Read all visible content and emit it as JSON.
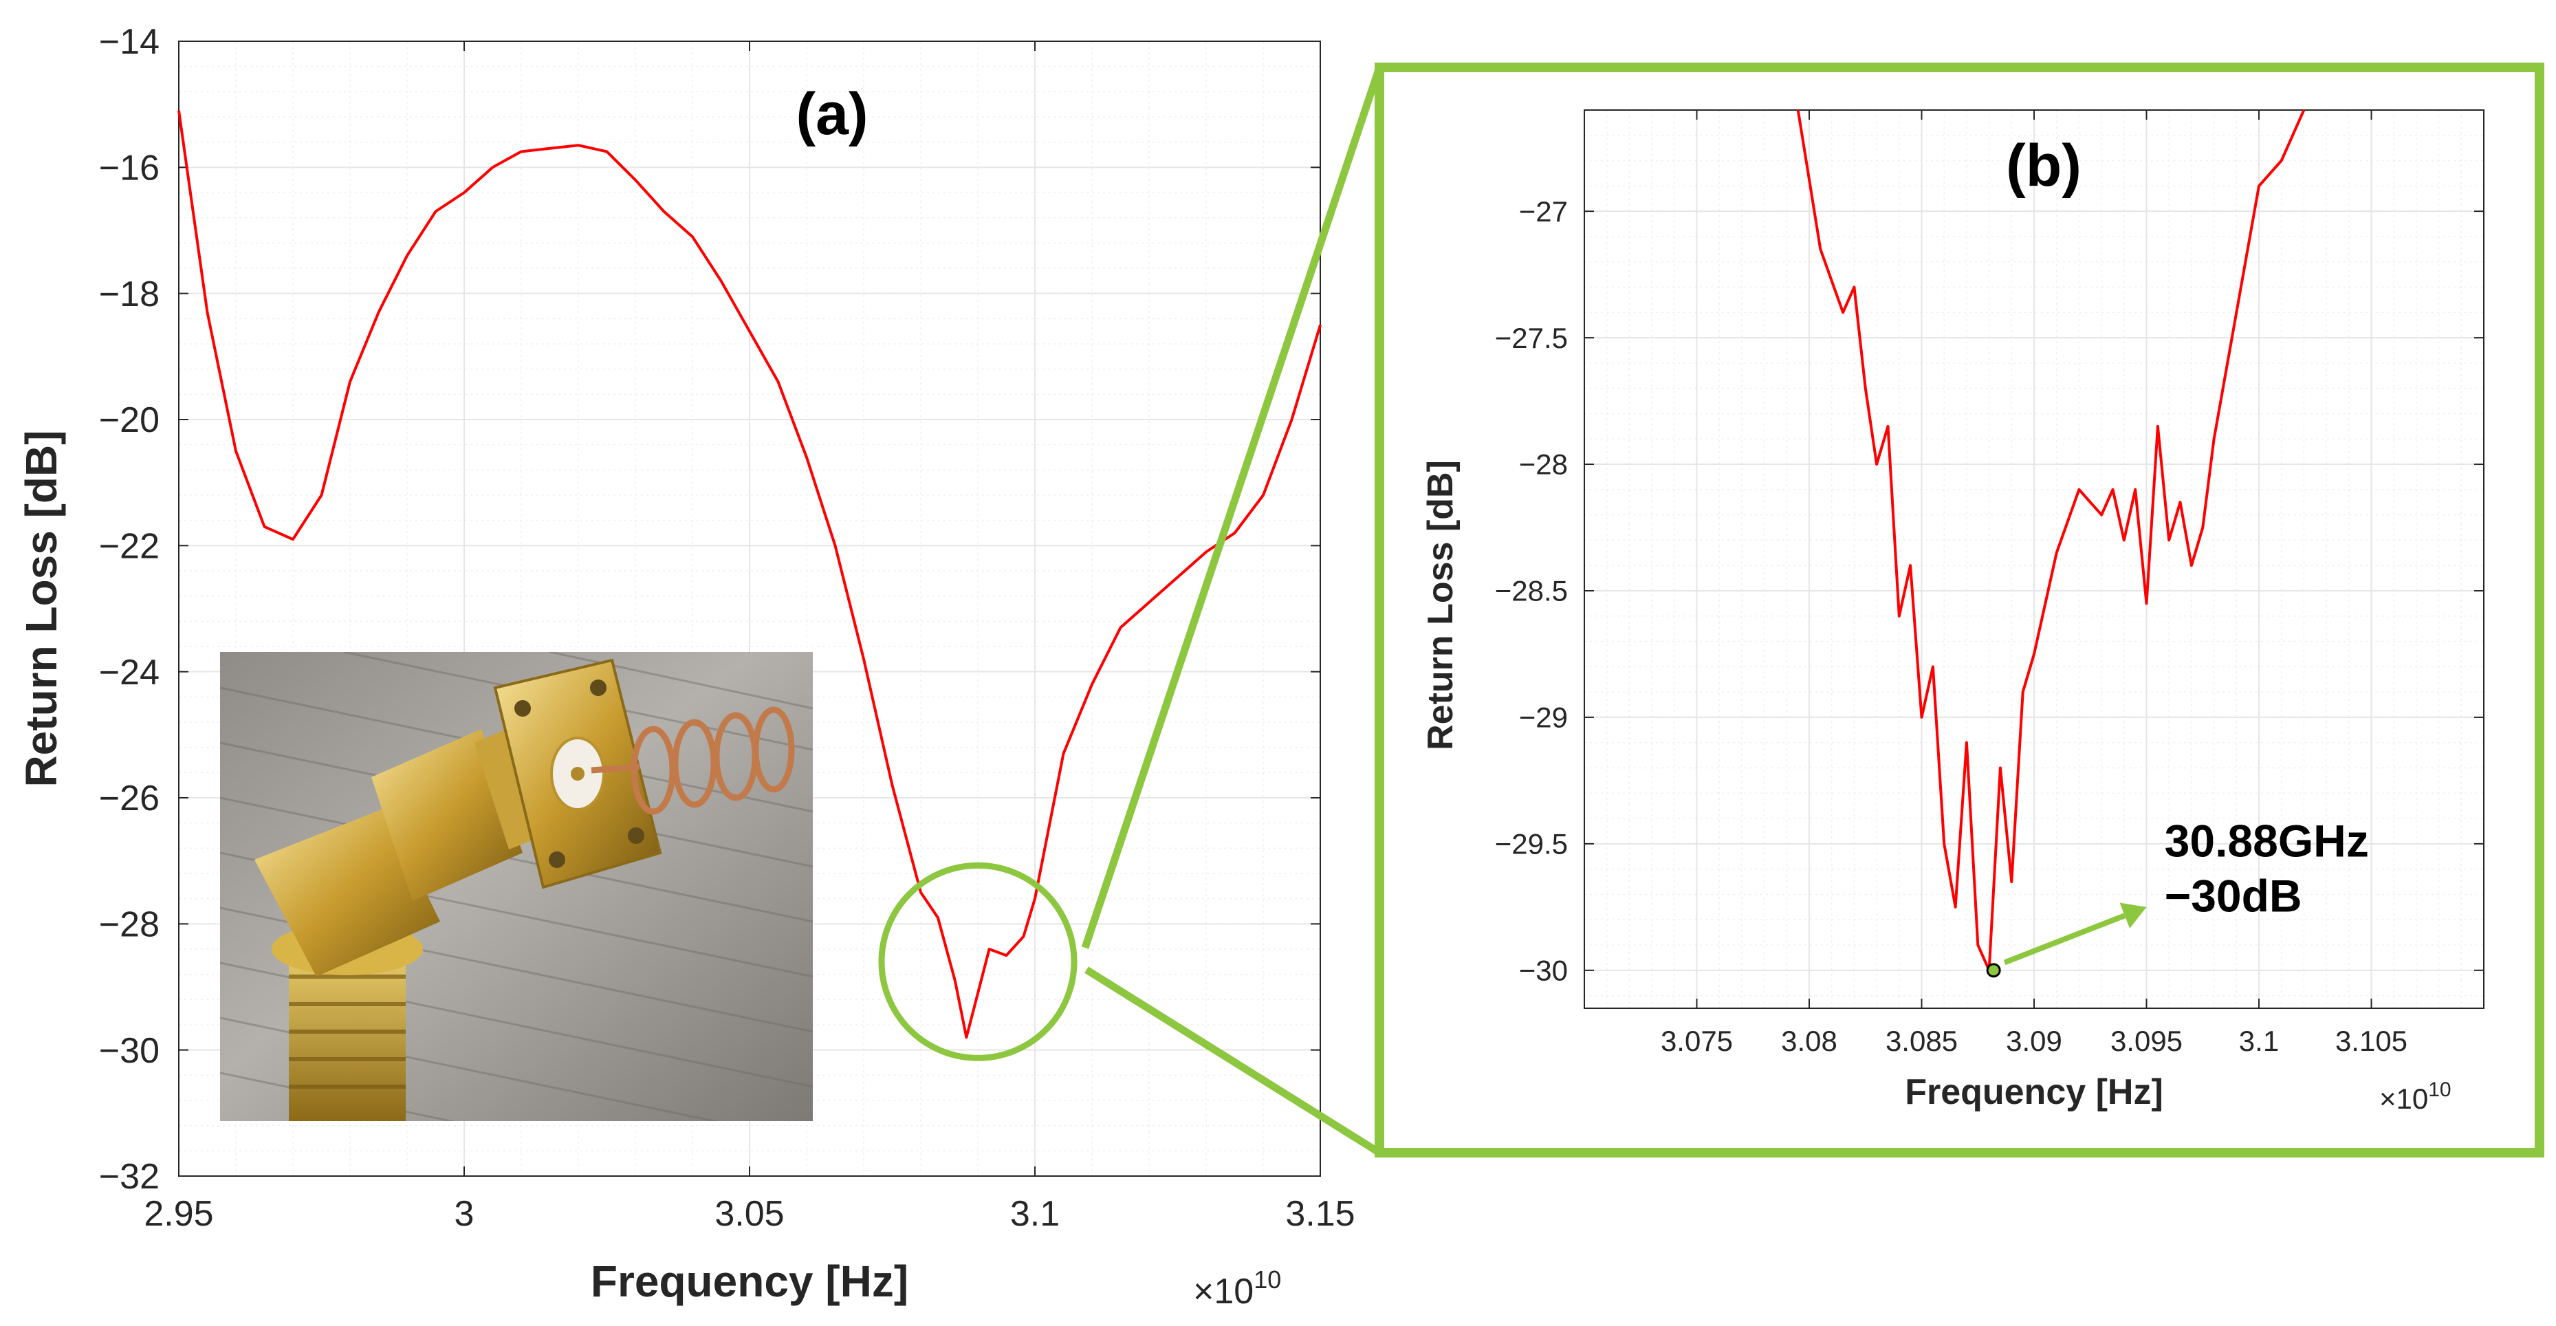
{
  "colors": {
    "series": "#ff0000",
    "highlight": "#8dc63f",
    "grid": "#e6e6e6",
    "axis": "#262626",
    "marker_fill": "#8dc63f"
  },
  "inset_photo": {
    "icon": "sma-connector-with-helical-antenna-photo"
  },
  "chart_data": [
    {
      "type": "line",
      "panel_label": "(a)",
      "title": "",
      "xlabel": "Frequency [Hz]",
      "ylabel": "Return Loss [dB]",
      "x_multiplier": "×10",
      "x_multiplier_exp": "10",
      "xlim": [
        2.95,
        3.15
      ],
      "ylim": [
        -32,
        -14
      ],
      "xticks": [
        2.95,
        3.0,
        3.05,
        3.1,
        3.15
      ],
      "xtick_labels": [
        "2.95",
        "3",
        "3.05",
        "3.1",
        "3.15"
      ],
      "yticks": [
        -32,
        -30,
        -28,
        -26,
        -24,
        -22,
        -20,
        -18,
        -16,
        -14
      ],
      "ytick_labels": [
        "−32",
        "−30",
        "−28",
        "−26",
        "−24",
        "−22",
        "−20",
        "−18",
        "−16",
        "−14"
      ],
      "grid": true,
      "series": [
        {
          "x": [
            2.95,
            2.955,
            2.96,
            2.965,
            2.97,
            2.975,
            2.98,
            2.985,
            2.99,
            2.995,
            3.0,
            3.005,
            3.01,
            3.015,
            3.02,
            3.025,
            3.03,
            3.035,
            3.04,
            3.045,
            3.05,
            3.055,
            3.06,
            3.065,
            3.07,
            3.075,
            3.08,
            3.083,
            3.086,
            3.088,
            3.09,
            3.092,
            3.095,
            3.098,
            3.1,
            3.105,
            3.11,
            3.115,
            3.12,
            3.125,
            3.13,
            3.135,
            3.14,
            3.145,
            3.15
          ],
          "y": [
            -15.1,
            -18.3,
            -20.5,
            -21.7,
            -21.9,
            -21.2,
            -19.4,
            -18.3,
            -17.4,
            -16.7,
            -16.4,
            -16.0,
            -15.75,
            -15.7,
            -15.65,
            -15.75,
            -16.2,
            -16.7,
            -17.1,
            -17.8,
            -18.6,
            -19.4,
            -20.6,
            -22.0,
            -23.8,
            -25.8,
            -27.5,
            -27.9,
            -28.9,
            -29.8,
            -29.1,
            -28.4,
            -28.5,
            -28.2,
            -27.6,
            -25.3,
            -24.2,
            -23.3,
            -22.9,
            -22.5,
            -22.1,
            -21.8,
            -21.2,
            -20.0,
            -18.5
          ]
        }
      ],
      "highlight": {
        "center": [
          3.09,
          -28.6
        ]
      }
    },
    {
      "type": "line",
      "panel_label": "(b)",
      "title": "",
      "xlabel": "Frequency [Hz]",
      "ylabel": "Return Loss [dB]",
      "x_multiplier": "×10",
      "x_multiplier_exp": "10",
      "xlim": [
        3.07,
        3.11
      ],
      "ylim": [
        -30.15,
        -26.6
      ],
      "xticks": [
        3.075,
        3.08,
        3.085,
        3.09,
        3.095,
        3.1,
        3.105
      ],
      "xtick_labels": [
        "3.075",
        "3.08",
        "3.085",
        "3.09",
        "3.095",
        "3.1",
        "3.105"
      ],
      "yticks": [
        -30,
        -29.5,
        -29,
        -28.5,
        -28,
        -27.5,
        -27
      ],
      "ytick_labels": [
        "−30",
        "−29.5",
        "−29",
        "−28.5",
        "−28",
        "−27.5",
        "−27"
      ],
      "grid": true,
      "series": [
        {
          "x": [
            3.0795,
            3.0805,
            3.0815,
            3.082,
            3.0825,
            3.083,
            3.0835,
            3.084,
            3.0845,
            3.085,
            3.0855,
            3.086,
            3.0865,
            3.087,
            3.0875,
            3.088,
            3.0885,
            3.089,
            3.0895,
            3.09,
            3.091,
            3.092,
            3.093,
            3.0935,
            3.094,
            3.0945,
            3.095,
            3.0955,
            3.096,
            3.0965,
            3.097,
            3.0975,
            3.098,
            3.099,
            3.1,
            3.101,
            3.102
          ],
          "y": [
            -26.6,
            -27.15,
            -27.4,
            -27.3,
            -27.7,
            -28.0,
            -27.85,
            -28.6,
            -28.4,
            -29.0,
            -28.8,
            -29.5,
            -29.75,
            -29.1,
            -29.9,
            -30.0,
            -29.2,
            -29.65,
            -28.9,
            -28.75,
            -28.35,
            -28.1,
            -28.2,
            -28.1,
            -28.3,
            -28.1,
            -28.55,
            -27.85,
            -28.3,
            -28.15,
            -28.4,
            -28.25,
            -27.9,
            -27.4,
            -26.9,
            -26.8,
            -26.6
          ]
        }
      ],
      "marker": {
        "x": 3.0882,
        "y": -30.0
      },
      "annotation": {
        "line1": "30.88GHz",
        "line2": "−30dB",
        "arrow_to": [
          3.095,
          -29.75
        ],
        "arrow_from": [
          3.0882,
          -29.98
        ],
        "text_at": [
          3.0958,
          -29.55
        ]
      }
    }
  ]
}
